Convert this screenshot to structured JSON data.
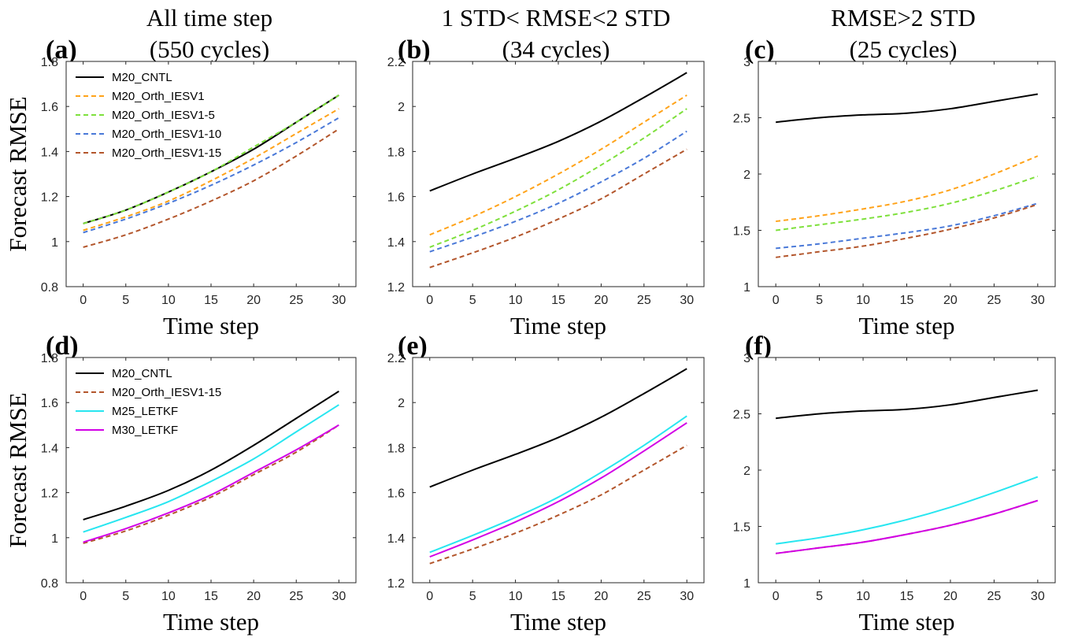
{
  "column_titles": [
    [
      "All time step",
      "(550 cycles)"
    ],
    [
      "1 STD< RMSE<2 STD",
      "(34 cycles)"
    ],
    [
      "RMSE>2 STD",
      "(25 cycles)"
    ]
  ],
  "colors": {
    "M20_CNTL": "#000000",
    "M20_Orth_IESV1": "#ffa31a",
    "M20_Orth_IESV1-5": "#7ee03c",
    "M20_Orth_IESV1-10": "#4a79d8",
    "M20_Orth_IESV1-15": "#b3562c",
    "M25_LETKF": "#28e6f0",
    "M30_LETKF": "#d200e6"
  },
  "chart_data": [
    {
      "panel": "(a)",
      "type": "line",
      "xlabel": "Time step",
      "ylabel": "Forecast RMSE",
      "xlim": [
        -2,
        32
      ],
      "ylim": [
        0.8,
        1.8
      ],
      "xticks": [
        0,
        5,
        10,
        15,
        20,
        25,
        30
      ],
      "yticks": [
        0.8,
        1,
        1.2,
        1.4,
        1.6,
        1.8
      ],
      "ytick_labels": [
        "0.8",
        "1",
        "1.2",
        "1.4",
        "1.6",
        "1.8"
      ],
      "legend": [
        "M20_CNTL",
        "M20_Orth_IESV1",
        "M20_Orth_IESV1-5",
        "M20_Orth_IESV1-10",
        "M20_Orth_IESV1-15"
      ],
      "legend_position": "top-left",
      "x": [
        0,
        5,
        10,
        15,
        20,
        25,
        30
      ],
      "series": [
        {
          "name": "M20_CNTL",
          "style": "solid",
          "values": [
            1.08,
            1.14,
            1.22,
            1.31,
            1.41,
            1.53,
            1.65
          ]
        },
        {
          "name": "M20_Orth_IESV1",
          "style": "dashed",
          "values": [
            1.05,
            1.11,
            1.18,
            1.27,
            1.37,
            1.48,
            1.59
          ]
        },
        {
          "name": "M20_Orth_IESV1-5",
          "style": "dashed",
          "values": [
            1.08,
            1.14,
            1.22,
            1.31,
            1.42,
            1.53,
            1.65
          ]
        },
        {
          "name": "M20_Orth_IESV1-10",
          "style": "dashed",
          "values": [
            1.04,
            1.1,
            1.17,
            1.25,
            1.34,
            1.44,
            1.55
          ]
        },
        {
          "name": "M20_Orth_IESV1-15",
          "style": "dashed",
          "values": [
            0.975,
            1.03,
            1.1,
            1.18,
            1.27,
            1.38,
            1.5
          ]
        }
      ]
    },
    {
      "panel": "(b)",
      "type": "line",
      "xlabel": "Time step",
      "ylabel": "",
      "xlim": [
        -2,
        32
      ],
      "ylim": [
        1.2,
        2.2
      ],
      "xticks": [
        0,
        5,
        10,
        15,
        20,
        25,
        30
      ],
      "yticks": [
        1.2,
        1.4,
        1.6,
        1.8,
        2,
        2.2
      ],
      "ytick_labels": [
        "1.2",
        "1.4",
        "1.6",
        "1.8",
        "2",
        "2.2"
      ],
      "legend": [],
      "x": [
        0,
        5,
        10,
        15,
        20,
        25,
        30
      ],
      "series": [
        {
          "name": "M20_CNTL",
          "style": "solid",
          "values": [
            1.625,
            1.7,
            1.77,
            1.845,
            1.935,
            2.04,
            2.15
          ]
        },
        {
          "name": "M20_Orth_IESV1",
          "style": "dashed",
          "values": [
            1.43,
            1.51,
            1.6,
            1.7,
            1.81,
            1.93,
            2.05
          ]
        },
        {
          "name": "M20_Orth_IESV1-5",
          "style": "dashed",
          "values": [
            1.375,
            1.45,
            1.535,
            1.63,
            1.74,
            1.86,
            1.99
          ]
        },
        {
          "name": "M20_Orth_IESV1-10",
          "style": "dashed",
          "values": [
            1.355,
            1.42,
            1.49,
            1.57,
            1.665,
            1.77,
            1.89
          ]
        },
        {
          "name": "M20_Orth_IESV1-15",
          "style": "dashed",
          "values": [
            1.285,
            1.35,
            1.42,
            1.5,
            1.59,
            1.7,
            1.81
          ]
        }
      ]
    },
    {
      "panel": "(c)",
      "type": "line",
      "xlabel": "Time step",
      "ylabel": "",
      "xlim": [
        -2,
        32
      ],
      "ylim": [
        1,
        3
      ],
      "xticks": [
        0,
        5,
        10,
        15,
        20,
        25,
        30
      ],
      "yticks": [
        1,
        1.5,
        2,
        2.5,
        3
      ],
      "ytick_labels": [
        "1",
        "1.5",
        "2",
        "2.5",
        "3"
      ],
      "legend": [],
      "x": [
        0,
        5,
        10,
        15,
        20,
        25,
        30
      ],
      "series": [
        {
          "name": "M20_CNTL",
          "style": "solid",
          "values": [
            2.46,
            2.5,
            2.525,
            2.54,
            2.58,
            2.645,
            2.71
          ]
        },
        {
          "name": "M20_Orth_IESV1",
          "style": "dashed",
          "values": [
            1.58,
            1.63,
            1.69,
            1.76,
            1.86,
            2.0,
            2.16
          ]
        },
        {
          "name": "M20_Orth_IESV1-5",
          "style": "dashed",
          "values": [
            1.5,
            1.55,
            1.6,
            1.66,
            1.74,
            1.85,
            1.98
          ]
        },
        {
          "name": "M20_Orth_IESV1-10",
          "style": "dashed",
          "values": [
            1.34,
            1.38,
            1.43,
            1.48,
            1.54,
            1.63,
            1.74
          ]
        },
        {
          "name": "M20_Orth_IESV1-15",
          "style": "dashed",
          "values": [
            1.26,
            1.31,
            1.36,
            1.43,
            1.51,
            1.61,
            1.73
          ]
        }
      ]
    },
    {
      "panel": "(d)",
      "type": "line",
      "xlabel": "Time step",
      "ylabel": "Forecast RMSE",
      "xlim": [
        -2,
        32
      ],
      "ylim": [
        0.8,
        1.8
      ],
      "xticks": [
        0,
        5,
        10,
        15,
        20,
        25,
        30
      ],
      "yticks": [
        0.8,
        1,
        1.2,
        1.4,
        1.6,
        1.8
      ],
      "ytick_labels": [
        "0.8",
        "1",
        "1.2",
        "1.4",
        "1.6",
        "1.8"
      ],
      "legend": [
        "M20_CNTL",
        "M20_Orth_IESV1-15",
        "M25_LETKF",
        "M30_LETKF"
      ],
      "legend_position": "top-left",
      "x": [
        0,
        5,
        10,
        15,
        20,
        25,
        30
      ],
      "series": [
        {
          "name": "M20_CNTL",
          "style": "solid",
          "values": [
            1.08,
            1.14,
            1.21,
            1.3,
            1.41,
            1.53,
            1.65
          ]
        },
        {
          "name": "M20_Orth_IESV1-15",
          "style": "dashed",
          "values": [
            0.975,
            1.03,
            1.1,
            1.18,
            1.28,
            1.38,
            1.5
          ]
        },
        {
          "name": "M25_LETKF",
          "style": "solid",
          "values": [
            1.025,
            1.09,
            1.16,
            1.25,
            1.35,
            1.47,
            1.59
          ]
        },
        {
          "name": "M30_LETKF",
          "style": "solid",
          "values": [
            0.98,
            1.04,
            1.11,
            1.19,
            1.29,
            1.39,
            1.5
          ]
        }
      ]
    },
    {
      "panel": "(e)",
      "type": "line",
      "xlabel": "Time step",
      "ylabel": "",
      "xlim": [
        -2,
        32
      ],
      "ylim": [
        1.2,
        2.2
      ],
      "xticks": [
        0,
        5,
        10,
        15,
        20,
        25,
        30
      ],
      "yticks": [
        1.2,
        1.4,
        1.6,
        1.8,
        2,
        2.2
      ],
      "ytick_labels": [
        "1.2",
        "1.4",
        "1.6",
        "1.8",
        "2",
        "2.2"
      ],
      "legend": [],
      "x": [
        0,
        5,
        10,
        15,
        20,
        25,
        30
      ],
      "series": [
        {
          "name": "M20_CNTL",
          "style": "solid",
          "values": [
            1.625,
            1.7,
            1.77,
            1.845,
            1.935,
            2.04,
            2.15
          ]
        },
        {
          "name": "M20_Orth_IESV1-15",
          "style": "dashed",
          "values": [
            1.285,
            1.35,
            1.42,
            1.5,
            1.59,
            1.7,
            1.81
          ]
        },
        {
          "name": "M25_LETKF",
          "style": "solid",
          "values": [
            1.335,
            1.41,
            1.49,
            1.58,
            1.69,
            1.81,
            1.94
          ]
        },
        {
          "name": "M30_LETKF",
          "style": "solid",
          "values": [
            1.315,
            1.39,
            1.47,
            1.56,
            1.665,
            1.785,
            1.91
          ]
        }
      ]
    },
    {
      "panel": "(f)",
      "type": "line",
      "xlabel": "Time step",
      "ylabel": "",
      "xlim": [
        -2,
        32
      ],
      "ylim": [
        1,
        3
      ],
      "xticks": [
        0,
        5,
        10,
        15,
        20,
        25,
        30
      ],
      "yticks": [
        1,
        1.5,
        2,
        2.5,
        3
      ],
      "ytick_labels": [
        "1",
        "1.5",
        "2",
        "2.5",
        "3"
      ],
      "legend": [],
      "x": [
        0,
        5,
        10,
        15,
        20,
        25,
        30
      ],
      "series": [
        {
          "name": "M20_CNTL",
          "style": "solid",
          "values": [
            2.46,
            2.5,
            2.525,
            2.54,
            2.58,
            2.645,
            2.71
          ]
        },
        {
          "name": "M20_Orth_IESV1-15",
          "style": "dashed",
          "values": [
            1.26,
            1.31,
            1.36,
            1.43,
            1.51,
            1.61,
            1.73
          ]
        },
        {
          "name": "M25_LETKF",
          "style": "solid",
          "values": [
            1.345,
            1.4,
            1.47,
            1.56,
            1.67,
            1.8,
            1.94
          ]
        },
        {
          "name": "M30_LETKF",
          "style": "solid",
          "values": [
            1.26,
            1.31,
            1.36,
            1.43,
            1.51,
            1.61,
            1.73
          ]
        }
      ]
    }
  ]
}
